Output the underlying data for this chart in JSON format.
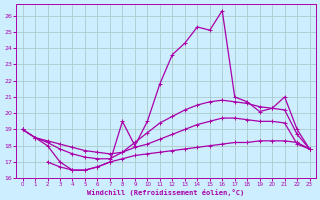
{
  "background_color": "#cceeff",
  "grid_color": "#aacccc",
  "line_color": "#aa00aa",
  "xlim": [
    -0.5,
    23.5
  ],
  "ylim": [
    16,
    26.7
  ],
  "xticks": [
    0,
    1,
    2,
    3,
    4,
    5,
    6,
    7,
    8,
    9,
    10,
    11,
    12,
    13,
    14,
    15,
    16,
    17,
    18,
    19,
    20,
    21,
    22,
    23
  ],
  "yticks": [
    16,
    17,
    18,
    19,
    20,
    21,
    22,
    23,
    24,
    25,
    26
  ],
  "xlabel": "Windchill (Refroidissement éolien,°C)",
  "line1_x": [
    0,
    1,
    2,
    3,
    4,
    5,
    6,
    7,
    8,
    9,
    10,
    11,
    12,
    13,
    14,
    15,
    16,
    17,
    18,
    19,
    20,
    21,
    22,
    23
  ],
  "line1_y": [
    19.0,
    18.5,
    18.0,
    17.0,
    16.5,
    16.5,
    16.7,
    17.0,
    19.5,
    18.0,
    19.5,
    21.8,
    23.6,
    24.3,
    25.3,
    25.1,
    26.3,
    21.0,
    20.7,
    20.1,
    20.3,
    21.0,
    19.0,
    17.8
  ],
  "line2_x": [
    0,
    1,
    2,
    3,
    4,
    5,
    6,
    7,
    8,
    9,
    10,
    11,
    12,
    13,
    14,
    15,
    16,
    17,
    18,
    19,
    20,
    21,
    22,
    23
  ],
  "line2_y": [
    19.0,
    18.5,
    18.2,
    17.8,
    17.5,
    17.3,
    17.2,
    17.2,
    17.6,
    18.2,
    18.8,
    19.4,
    19.8,
    20.2,
    20.5,
    20.7,
    20.8,
    20.7,
    20.6,
    20.4,
    20.3,
    20.2,
    18.7,
    17.8
  ],
  "line3_x": [
    0,
    1,
    2,
    3,
    4,
    5,
    6,
    7,
    8,
    9,
    10,
    11,
    12,
    13,
    14,
    15,
    16,
    17,
    18,
    19,
    20,
    21,
    22,
    23
  ],
  "line3_y": [
    19.0,
    18.5,
    18.3,
    18.1,
    17.9,
    17.7,
    17.6,
    17.5,
    17.6,
    17.9,
    18.1,
    18.4,
    18.7,
    19.0,
    19.3,
    19.5,
    19.7,
    19.7,
    19.6,
    19.5,
    19.5,
    19.4,
    18.1,
    17.8
  ],
  "line4_x": [
    2,
    3,
    4,
    5,
    6,
    7,
    8,
    9,
    10,
    11,
    12,
    13,
    14,
    15,
    16,
    17,
    18,
    19,
    20,
    21,
    22,
    23
  ],
  "line4_y": [
    17.0,
    16.7,
    16.5,
    16.5,
    16.7,
    17.0,
    17.2,
    17.4,
    17.5,
    17.6,
    17.7,
    17.8,
    17.9,
    18.0,
    18.1,
    18.2,
    18.2,
    18.3,
    18.3,
    18.3,
    18.2,
    17.8
  ]
}
